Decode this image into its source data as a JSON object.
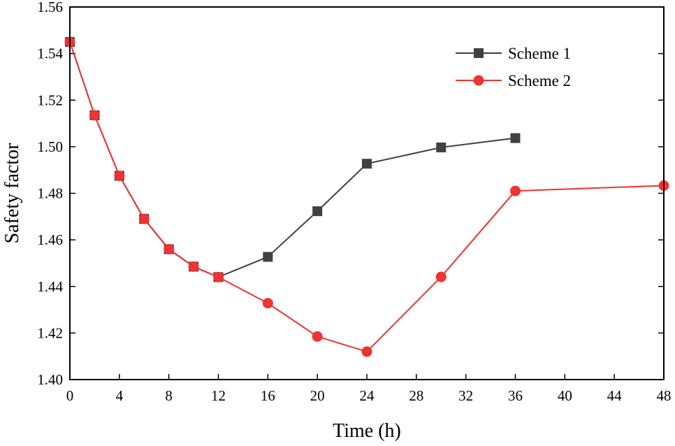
{
  "chart_data": {
    "type": "line",
    "title": "",
    "xlabel": "Time (h)",
    "ylabel": "Safety factor",
    "xlim": [
      0,
      48
    ],
    "ylim": [
      1.4,
      1.56
    ],
    "x_ticks": [
      0,
      4,
      8,
      12,
      16,
      20,
      24,
      28,
      32,
      36,
      40,
      44,
      48
    ],
    "y_ticks": [
      1.4,
      1.42,
      1.44,
      1.46,
      1.48,
      1.5,
      1.52,
      1.54,
      1.56
    ],
    "y_tick_labels": [
      "1.40",
      "1.42",
      "1.44",
      "1.46",
      "1.48",
      "1.50",
      "1.52",
      "1.54",
      "1.56"
    ],
    "grid": false,
    "legend_position": "top-right",
    "series": [
      {
        "name": "Scheme 1",
        "color": "#404040",
        "marker": "square",
        "x": [
          0,
          2,
          4,
          6,
          8,
          10,
          12,
          16,
          20,
          24,
          30,
          36
        ],
        "y": [
          1.545,
          1.5135,
          1.4875,
          1.469,
          1.456,
          1.4485,
          1.444,
          1.4527,
          1.4723,
          1.4927,
          1.4997,
          1.5037
        ]
      },
      {
        "name": "Scheme 2",
        "color": "#ee3333",
        "marker": "circle",
        "x": [
          0,
          2,
          4,
          6,
          8,
          10,
          12,
          16,
          20,
          24,
          30,
          36,
          48
        ],
        "y": [
          1.545,
          1.5135,
          1.4875,
          1.469,
          1.456,
          1.4485,
          1.444,
          1.4328,
          1.4185,
          1.412,
          1.4441,
          1.481,
          1.4833
        ]
      }
    ]
  }
}
